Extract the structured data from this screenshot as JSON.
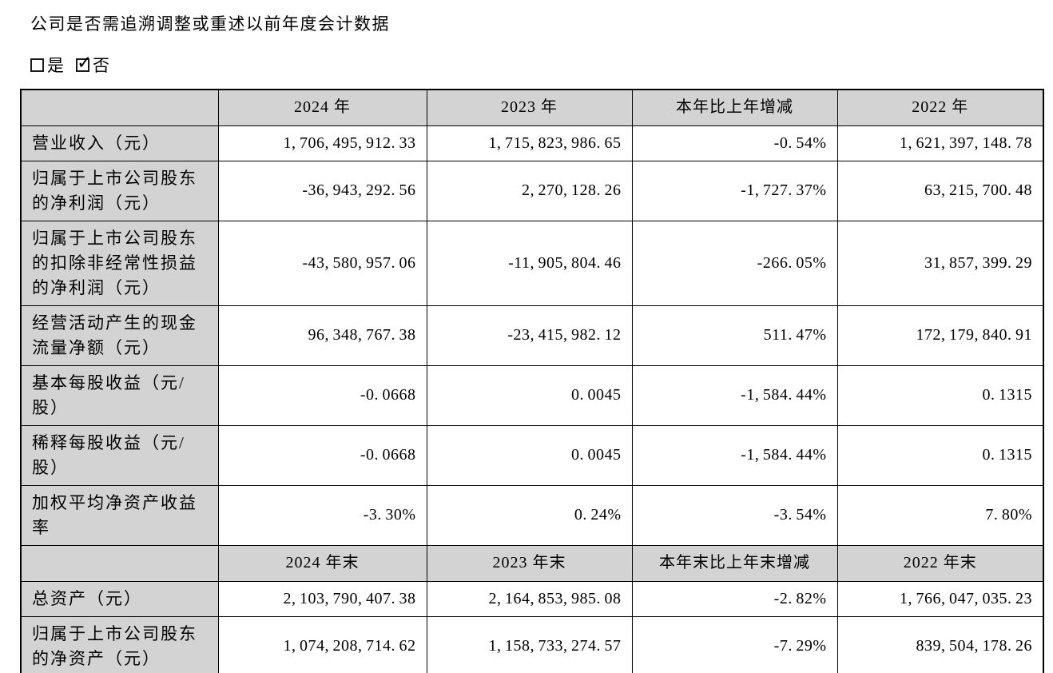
{
  "document": {
    "question": "公司是否需追溯调整或重述以前年度会计数据",
    "checkboxes": [
      {
        "label": "是",
        "checked": false
      },
      {
        "label": "否",
        "checked": true
      }
    ]
  },
  "table": {
    "sections": [
      {
        "header": [
          "",
          "2024 年",
          "2023 年",
          "本年比上年增减",
          "2022 年"
        ],
        "rows": [
          {
            "label": "营业收入（元）",
            "values": [
              "1,706,495,912.33",
              "1,715,823,986.65",
              "-0.54%",
              "1,621,397,148.78"
            ]
          },
          {
            "label": "归属于上市公司股东的净利润（元）",
            "values": [
              "-36,943,292.56",
              "2,270,128.26",
              "-1,727.37%",
              "63,215,700.48"
            ]
          },
          {
            "label": "归属于上市公司股东的扣除非经常性损益的净利润（元）",
            "values": [
              "-43,580,957.06",
              "-11,905,804.46",
              "-266.05%",
              "31,857,399.29"
            ]
          },
          {
            "label": "经营活动产生的现金流量净额（元）",
            "values": [
              "96,348,767.38",
              "-23,415,982.12",
              "511.47%",
              "172,179,840.91"
            ]
          },
          {
            "label": "基本每股收益（元/股）",
            "values": [
              "-0.0668",
              "0.0045",
              "-1,584.44%",
              "0.1315"
            ]
          },
          {
            "label": "稀释每股收益（元/股）",
            "values": [
              "-0.0668",
              "0.0045",
              "-1,584.44%",
              "0.1315"
            ]
          },
          {
            "label": "加权平均净资产收益率",
            "values": [
              "-3.30%",
              "0.24%",
              "-3.54%",
              "7.80%"
            ]
          }
        ]
      },
      {
        "header": [
          "",
          "2024 年末",
          "2023 年末",
          "本年末比上年末增减",
          "2022 年末"
        ],
        "rows": [
          {
            "label": "总资产（元）",
            "values": [
              "2,103,790,407.38",
              "2,164,853,985.08",
              "-2.82%",
              "1,766,047,035.23"
            ]
          },
          {
            "label": "归属于上市公司股东的净资产（元）",
            "values": [
              "1,074,208,714.62",
              "1,158,733,274.57",
              "-7.29%",
              "839,504,178.26"
            ]
          }
        ]
      }
    ]
  }
}
